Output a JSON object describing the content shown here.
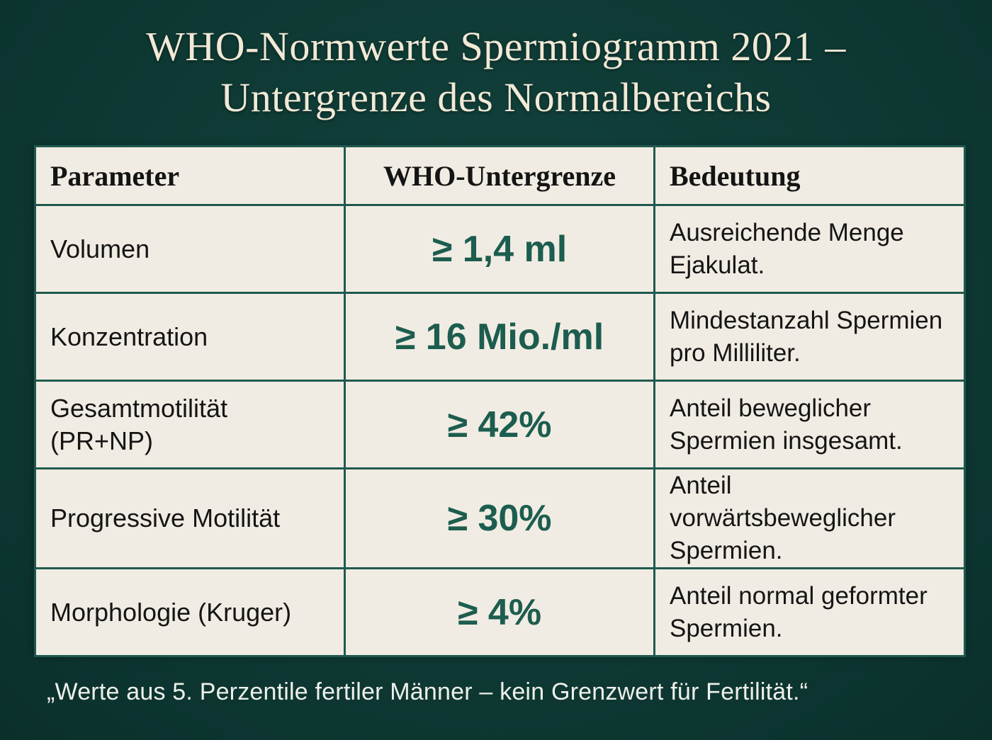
{
  "title": {
    "line1": "WHO-Normwerte Spermiogramm 2021 –",
    "line2": "Untergrenze des Normalbereichs"
  },
  "table": {
    "headers": [
      "Parameter",
      "WHO-Untergrenze",
      "Bedeutung"
    ],
    "rows": [
      {
        "parameter": "Volumen",
        "value": "≥ 1,4 ml",
        "meaning": "Ausreichende Menge Ejakulat."
      },
      {
        "parameter": "Konzentration",
        "value": "≥ 16 Mio./ml",
        "meaning": "Mindestanzahl Spermien pro Milliliter."
      },
      {
        "parameter": "Gesamtmotilität (PR+NP)",
        "value": "≥ 42%",
        "meaning": "Anteil beweglicher Spermien insgesamt."
      },
      {
        "parameter": "Progressive Motilität",
        "value": "≥ 30%",
        "meaning": "Anteil vorwärtsbeweglicher Spermien."
      },
      {
        "parameter": "Morphologie (Kruger)",
        "value": "≥ 4%",
        "meaning": "Anteil normal geformter Spermien."
      }
    ]
  },
  "footnote": "„Werte aus 5. Perzentile fertiler Männer – kein Grenzwert für Fertilität.“",
  "colors": {
    "background": "#0f3b36",
    "table_bg": "#f1ece3",
    "border": "#1f5a4f",
    "value_text": "#1c5d4f",
    "title_text": "#f1e9d6"
  }
}
